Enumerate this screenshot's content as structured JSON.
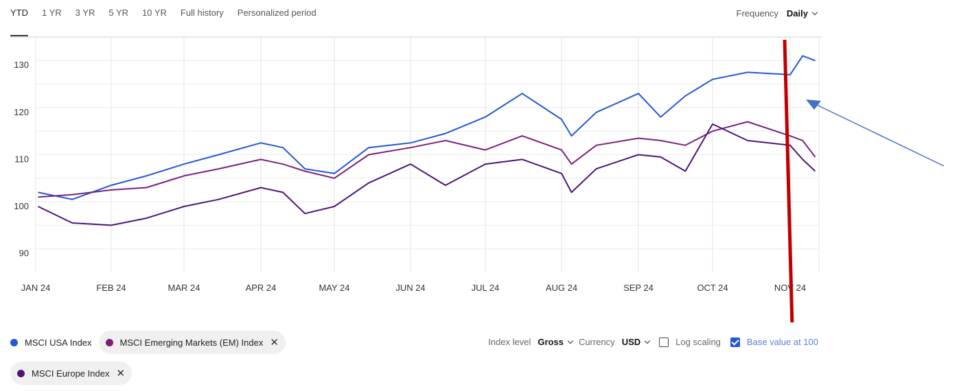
{
  "tabs": [
    "YTD",
    "1 YR",
    "3 YR",
    "5 YR",
    "10 YR",
    "Full history",
    "Personalized period"
  ],
  "frequency": {
    "label": "Frequency",
    "value": "Daily"
  },
  "legend": [
    {
      "name": "MSCI USA Index",
      "color": "#2357d6",
      "removable": false
    },
    {
      "name": "MSCI Emerging Markets (EM) Index",
      "color": "#7a1f7a",
      "removable": true
    },
    {
      "name": "MSCI Europe Index",
      "color": "#4b1478",
      "removable": true
    }
  ],
  "controls": {
    "index_level_label": "Index level",
    "index_level_value": "Gross",
    "currency_label": "Currency",
    "currency_value": "USD",
    "log_scaling_label": "Log scaling",
    "log_scaling_checked": false,
    "base_value_label": "Base value at 100",
    "base_value_checked": true
  },
  "chart_data": {
    "type": "line",
    "x": [
      "2024-01-02",
      "2024-01-16",
      "2024-02-01",
      "2024-02-15",
      "2024-03-01",
      "2024-03-15",
      "2024-04-01",
      "2024-04-10",
      "2024-04-19",
      "2024-05-01",
      "2024-05-15",
      "2024-06-01",
      "2024-06-15",
      "2024-07-01",
      "2024-07-16",
      "2024-08-01",
      "2024-08-05",
      "2024-08-15",
      "2024-09-01",
      "2024-09-10",
      "2024-09-20",
      "2024-10-01",
      "2024-10-15",
      "2024-11-01",
      "2024-11-06",
      "2024-11-11"
    ],
    "x_ticks": [
      "JAN 24",
      "FEB 24",
      "MAR 24",
      "APR 24",
      "MAY 24",
      "JUN 24",
      "JUL 24",
      "AUG 24",
      "SEP 24",
      "OCT 24",
      "NOV 24"
    ],
    "y_ticks": [
      90,
      100,
      110,
      120,
      130
    ],
    "ylim": [
      86,
      136
    ],
    "series": [
      {
        "name": "MSCI USA Index",
        "color": "#2357d6",
        "values": [
          103,
          101.5,
          104.5,
          106.5,
          109,
          111,
          113.5,
          112.5,
          108,
          107,
          112.5,
          113.5,
          115.5,
          119,
          124,
          118.5,
          115,
          120,
          124,
          119,
          123.5,
          127,
          128.5,
          128,
          132,
          131
        ]
      },
      {
        "name": "MSCI Emerging Markets (EM) Index",
        "color": "#7a1f7a",
        "values": [
          102,
          102.5,
          103.5,
          104,
          106.5,
          108,
          110,
          109,
          107.5,
          106,
          111,
          112.5,
          114,
          112,
          115,
          112,
          109,
          113,
          114.5,
          114,
          113,
          116,
          118,
          115,
          114,
          110.5
        ]
      },
      {
        "name": "MSCI Europe Index",
        "color": "#4b1478",
        "values": [
          100,
          96.5,
          96,
          97.5,
          100,
          101.5,
          104,
          103,
          98.5,
          100,
          105,
          109,
          104.5,
          109,
          110,
          107,
          103,
          108,
          111,
          110.5,
          107.5,
          117.5,
          114,
          113,
          110,
          107.5
        ]
      }
    ],
    "grid": true
  }
}
